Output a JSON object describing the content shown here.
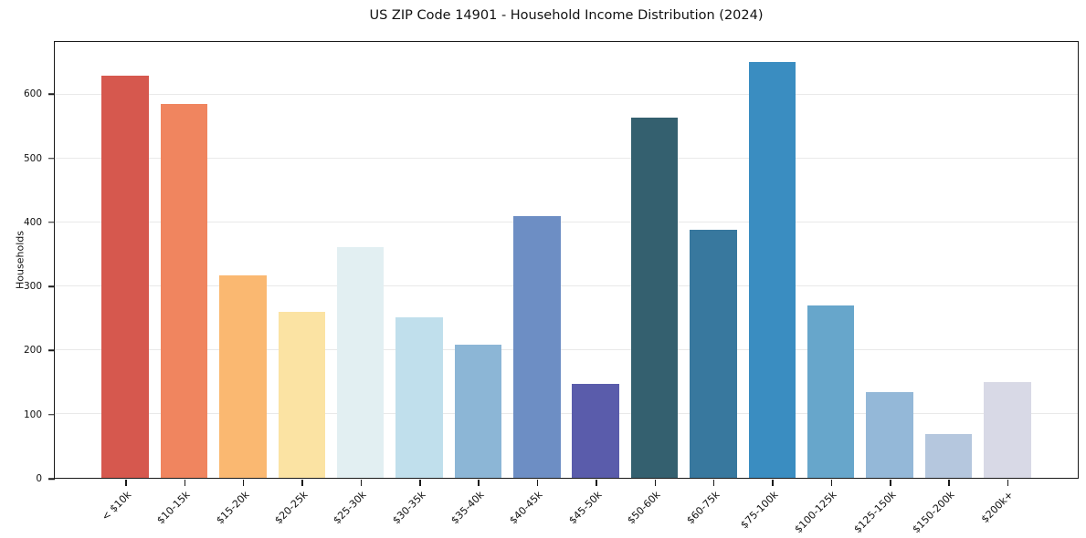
{
  "chart_data": {
    "type": "bar",
    "title": "US ZIP Code 14901 - Household Income Distribution (2024)",
    "xlabel": "",
    "ylabel": "Households",
    "categories": [
      "< $10k",
      "$10-15k",
      "$15-20k",
      "$20-25k",
      "$25-30k",
      "$30-35k",
      "$35-40k",
      "$40-45k",
      "$45-50k",
      "$50-60k",
      "$60-75k",
      "$75-100k",
      "$100-125k",
      "$125-150k",
      "$150-200k",
      "$200k+"
    ],
    "values": [
      630,
      586,
      317,
      260,
      361,
      251,
      209,
      410,
      147,
      565,
      388,
      651,
      270,
      134,
      69,
      150
    ],
    "bar_colors": [
      "#d6584e",
      "#f0855f",
      "#fab871",
      "#fbe3a3",
      "#e2eff2",
      "#c0dfec",
      "#8cb6d6",
      "#6d8ec4",
      "#5a5cab",
      "#34606f",
      "#38789e",
      "#3a8dc1",
      "#67a6cb",
      "#94b8d8",
      "#b5c7de",
      "#d8d9e6"
    ],
    "ylim": [
      0,
      683
    ],
    "yticks": [
      0,
      100,
      200,
      300,
      400,
      500,
      600
    ],
    "grid": "horizontal",
    "gridline_color": "#e9e9e9",
    "axis_color": "#1a1a1a",
    "text_color": "#111111",
    "background_color": "#ffffff",
    "legend": "none",
    "x_tick_rotation_deg": 45
  }
}
